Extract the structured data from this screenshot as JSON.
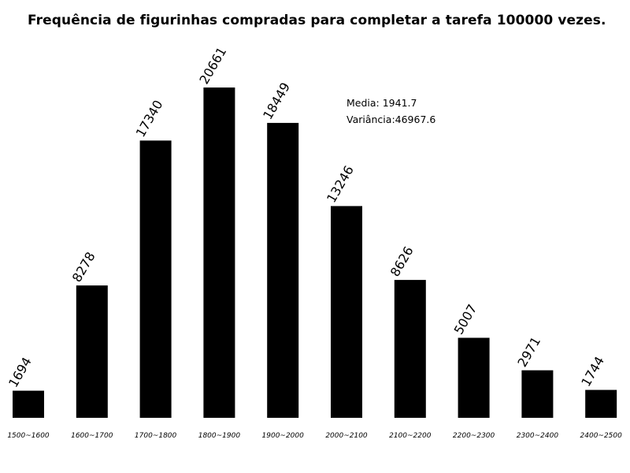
{
  "chart_data": {
    "type": "bar",
    "title": "Frequência de figurinhas compradas para completar a tarefa 100000 vezes.",
    "xlabel": "",
    "ylabel": "",
    "categories": [
      "1500~1600",
      "1600~1700",
      "1700~1800",
      "1800~1900",
      "1900~2000",
      "2000~2100",
      "2100~2200",
      "2200~2300",
      "2300~2400",
      "2400~2500"
    ],
    "values": [
      1694,
      8278,
      17340,
      20661,
      18449,
      13246,
      8626,
      5007,
      2971,
      1744
    ],
    "data_labels": [
      "1694",
      "8278",
      "17340",
      "20661",
      "18449",
      "13246",
      "8626",
      "5007",
      "2971",
      "1744"
    ],
    "ylim": [
      0,
      20661
    ],
    "bar_color": "#000000",
    "grid": false,
    "legend": "none",
    "annotations": {
      "media": "Media: 1941.7",
      "variancia": "Variância:46967.6"
    }
  }
}
